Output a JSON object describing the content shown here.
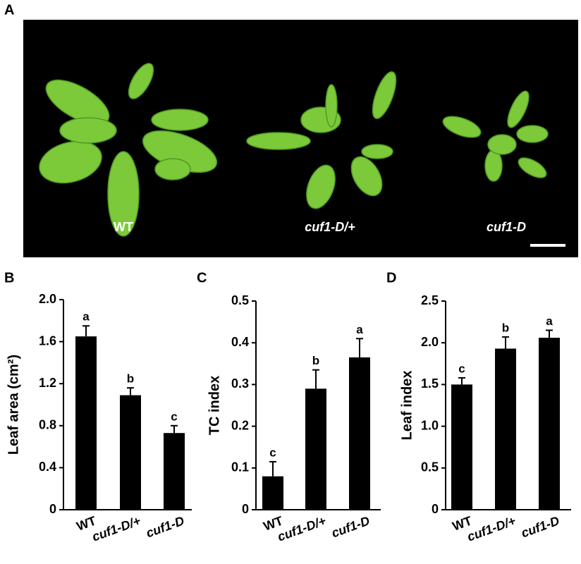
{
  "panel_labels": [
    "A",
    "B",
    "C",
    "D"
  ],
  "photo": {
    "labels": [
      "WT",
      "cuf1-D/+",
      "cuf1-D"
    ]
  },
  "chart_data": [
    {
      "type": "bar",
      "ylabel": "Leaf area (cm²)",
      "categories": [
        "WT",
        "cuf1-D/+",
        "cuf1-D"
      ],
      "values": [
        1.65,
        1.09,
        0.73
      ],
      "errors": [
        0.1,
        0.07,
        0.07
      ],
      "annotations": [
        "a",
        "b",
        "c"
      ],
      "color": "#000000",
      "ylim": [
        0,
        2
      ],
      "yticks": [
        0,
        0.4,
        0.8,
        1.2,
        1.6,
        {
          "value": 2,
          "label": "2.0"
        }
      ]
    },
    {
      "type": "bar",
      "ylabel": "TC  index",
      "categories": [
        "WT",
        "cuf1-D/+",
        "cuf1-D"
      ],
      "values": [
        0.08,
        0.29,
        0.365
      ],
      "errors": [
        0.035,
        0.045,
        0.045
      ],
      "annotations": [
        "c",
        "b",
        "a"
      ],
      "color": "#000000",
      "ylim": [
        0,
        0.5
      ],
      "yticks": [
        0,
        0.1,
        0.2,
        0.3,
        0.4,
        0.5
      ]
    },
    {
      "type": "bar",
      "ylabel": "Leaf index",
      "categories": [
        "WT",
        "cuf1-D/+",
        "cuf1-D"
      ],
      "values": [
        1.5,
        1.93,
        2.06
      ],
      "errors": [
        0.08,
        0.14,
        0.09
      ],
      "annotations": [
        "c",
        "b",
        "a"
      ],
      "color": "#000000",
      "ylim": [
        0,
        2.5
      ],
      "yticks": [
        0,
        0.5,
        {
          "value": 1,
          "label": "1.0"
        },
        1.5,
        {
          "value": 2,
          "label": "2.0"
        },
        2.5
      ]
    }
  ]
}
